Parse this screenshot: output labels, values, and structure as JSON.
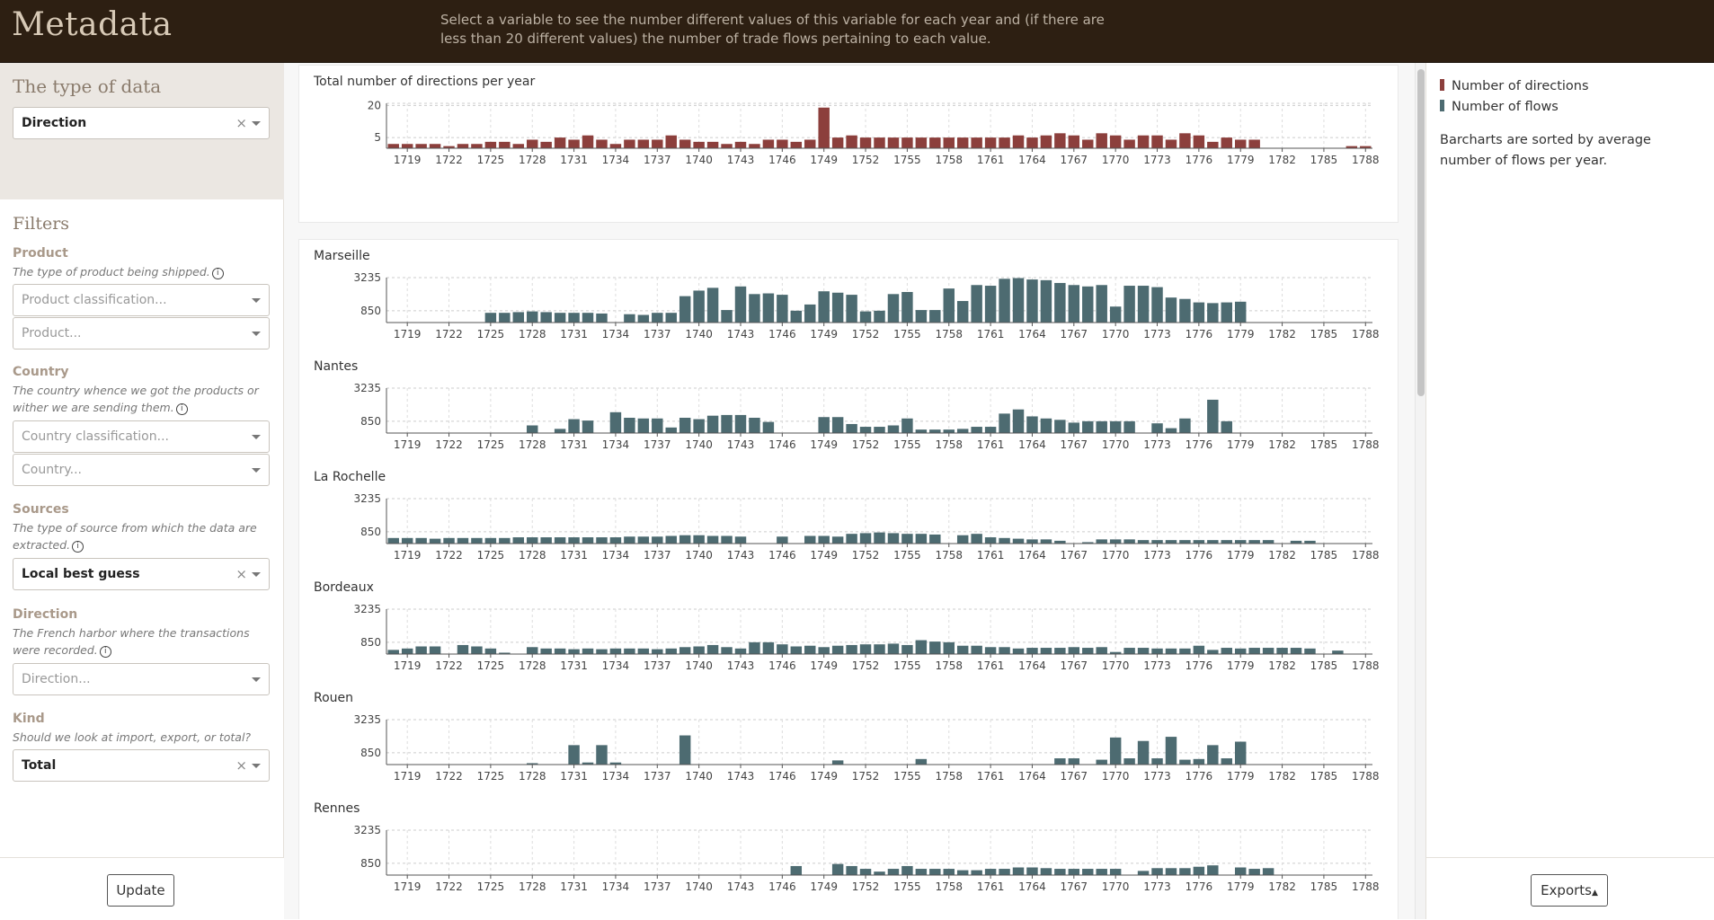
{
  "header": {
    "title": "Metadata",
    "description": "Select a variable to see the number different values of this variable for each year and (if there are less than 20 different values) the number of trade flows pertaining to each value."
  },
  "sidebar": {
    "type_title": "The type of data",
    "type_select": {
      "value": "Direction"
    },
    "filters_title": "Filters",
    "product": {
      "label": "Product",
      "desc": "The type of product being shipped.",
      "classification_placeholder": "Product classification...",
      "placeholder": "Product..."
    },
    "country": {
      "label": "Country",
      "desc": "The country whence we got the products or wither we are sending them.",
      "classification_placeholder": "Country classification...",
      "placeholder": "Country..."
    },
    "sources": {
      "label": "Sources",
      "desc": "The type of source from which the data are extracted.",
      "value": "Local best guess"
    },
    "direction": {
      "label": "Direction",
      "desc": "The French harbor where the transactions were recorded.",
      "placeholder": "Direction..."
    },
    "kind": {
      "label": "Kind",
      "desc": "Should we look at import, export, or total?",
      "value": "Total"
    },
    "update_label": "Update"
  },
  "legend": {
    "items": [
      {
        "label": "Number of directions",
        "color": "#8c3f3c"
      },
      {
        "label": "Number of flows",
        "color": "#4d6b71"
      }
    ],
    "note": "Barcharts are sorted by average number of flows per year."
  },
  "exports_label": "Exports",
  "chart_data": [
    {
      "type": "bar",
      "title": "Total number of directions per year",
      "color": "#8c3f3c",
      "x_start": 1718,
      "x_end": 1788,
      "x_ticks": [
        1719,
        1722,
        1725,
        1728,
        1731,
        1734,
        1737,
        1740,
        1743,
        1746,
        1749,
        1752,
        1755,
        1758,
        1761,
        1764,
        1767,
        1770,
        1773,
        1776,
        1779,
        1782,
        1785,
        1788
      ],
      "y_ticks": [
        5,
        20
      ],
      "ylim": [
        0,
        21
      ],
      "values": [
        2,
        2,
        2,
        2,
        1,
        2,
        2,
        3,
        3,
        2,
        4,
        3,
        5,
        4,
        6,
        4,
        2,
        4,
        4,
        4,
        6,
        4,
        3,
        3,
        2,
        3,
        2,
        4,
        4,
        3,
        4,
        19,
        5,
        6,
        5,
        5,
        5,
        5,
        5,
        5,
        5,
        5,
        5,
        5,
        5,
        6,
        5,
        6,
        7,
        6,
        4,
        7,
        6,
        4,
        6,
        6,
        4,
        7,
        6,
        3,
        5,
        4,
        4,
        null,
        null,
        null,
        null,
        null,
        null,
        1,
        1
      ]
    },
    {
      "type": "bar",
      "title": "Marseille",
      "color": "#4d6b71",
      "x_start": 1718,
      "x_end": 1788,
      "y_ticks": [
        850,
        3235
      ],
      "ylim": [
        0,
        3235
      ],
      "values": [
        null,
        null,
        null,
        null,
        null,
        null,
        null,
        700,
        700,
        750,
        800,
        750,
        700,
        700,
        700,
        650,
        null,
        600,
        550,
        700,
        700,
        1900,
        2300,
        2500,
        900,
        2600,
        2050,
        2100,
        2000,
        850,
        1300,
        2250,
        2150,
        2000,
        800,
        850,
        2050,
        2200,
        900,
        900,
        2450,
        1550,
        2700,
        2650,
        3150,
        3200,
        3100,
        3050,
        2850,
        2700,
        2600,
        2700,
        1150,
        2650,
        2650,
        2550,
        1800,
        1700,
        1450,
        1400,
        1450,
        1500,
        null,
        null,
        null,
        null,
        null,
        null,
        null,
        null,
        null
      ]
    },
    {
      "type": "bar",
      "title": "Nantes",
      "color": "#4d6b71",
      "x_start": 1718,
      "x_end": 1788,
      "y_ticks": [
        850,
        3235
      ],
      "ylim": [
        0,
        3235
      ],
      "values": [
        null,
        null,
        null,
        null,
        null,
        null,
        null,
        null,
        null,
        null,
        550,
        null,
        300,
        1000,
        900,
        null,
        1500,
        1100,
        1050,
        1050,
        400,
        1100,
        1000,
        1250,
        1300,
        1300,
        1100,
        800,
        null,
        null,
        null,
        1150,
        1150,
        650,
        450,
        450,
        550,
        1050,
        250,
        250,
        250,
        300,
        450,
        450,
        1400,
        1700,
        1200,
        1050,
        950,
        750,
        850,
        850,
        850,
        850,
        null,
        700,
        350,
        1050,
        null,
        2400,
        850,
        null,
        null,
        null,
        null,
        null,
        null,
        null,
        null,
        null,
        null
      ]
    },
    {
      "type": "bar",
      "title": "La Rochelle",
      "color": "#4d6b71",
      "x_start": 1718,
      "x_end": 1788,
      "y_ticks": [
        850,
        3235
      ],
      "ylim": [
        0,
        3235
      ],
      "values": [
        400,
        400,
        400,
        350,
        400,
        400,
        400,
        400,
        400,
        450,
        450,
        450,
        450,
        450,
        450,
        450,
        450,
        500,
        500,
        500,
        550,
        600,
        600,
        550,
        550,
        500,
        null,
        null,
        500,
        null,
        550,
        550,
        500,
        700,
        750,
        800,
        750,
        700,
        700,
        650,
        null,
        600,
        700,
        450,
        400,
        350,
        300,
        300,
        200,
        null,
        100,
        300,
        300,
        300,
        250,
        250,
        250,
        250,
        250,
        250,
        250,
        250,
        250,
        250,
        null,
        200,
        200,
        null,
        null,
        null,
        null,
        null
      ]
    },
    {
      "type": "bar",
      "title": "Bordeaux",
      "color": "#4d6b71",
      "x_start": 1718,
      "x_end": 1788,
      "y_ticks": [
        850,
        3235
      ],
      "ylim": [
        0,
        3235
      ],
      "values": [
        300,
        400,
        550,
        550,
        null,
        650,
        550,
        400,
        100,
        null,
        500,
        400,
        400,
        350,
        400,
        350,
        400,
        400,
        400,
        350,
        400,
        500,
        550,
        650,
        500,
        400,
        850,
        850,
        700,
        550,
        600,
        500,
        600,
        650,
        700,
        700,
        750,
        650,
        1000,
        900,
        850,
        600,
        600,
        500,
        500,
        400,
        450,
        450,
        450,
        500,
        450,
        500,
        150,
        450,
        450,
        400,
        400,
        400,
        600,
        300,
        450,
        400,
        450,
        450,
        450,
        450,
        400,
        null,
        250,
        null,
        null,
        null
      ]
    },
    {
      "type": "bar",
      "title": "Rouen",
      "color": "#4d6b71",
      "x_start": 1718,
      "x_end": 1788,
      "y_ticks": [
        850,
        3235
      ],
      "ylim": [
        0,
        3235
      ],
      "values": [
        null,
        null,
        null,
        null,
        null,
        null,
        null,
        null,
        null,
        null,
        100,
        null,
        null,
        1400,
        150,
        1400,
        150,
        null,
        null,
        null,
        null,
        2100,
        null,
        null,
        null,
        null,
        null,
        null,
        null,
        null,
        null,
        null,
        300,
        null,
        null,
        null,
        null,
        null,
        400,
        null,
        null,
        null,
        null,
        null,
        null,
        null,
        null,
        null,
        450,
        450,
        null,
        350,
        1950,
        450,
        1700,
        450,
        2000,
        350,
        400,
        1400,
        450,
        1650,
        null,
        null,
        null,
        null,
        null,
        null,
        null,
        null,
        null
      ]
    },
    {
      "type": "bar",
      "title": "Rennes",
      "color": "#4d6b71",
      "x_start": 1718,
      "x_end": 1788,
      "y_ticks": [
        850,
        3235
      ],
      "ylim": [
        0,
        3235
      ],
      "values": [
        null,
        null,
        null,
        null,
        null,
        null,
        null,
        null,
        null,
        null,
        null,
        null,
        null,
        null,
        null,
        null,
        null,
        null,
        null,
        null,
        null,
        null,
        null,
        null,
        null,
        null,
        null,
        null,
        null,
        650,
        null,
        null,
        800,
        650,
        450,
        250,
        450,
        650,
        450,
        450,
        450,
        350,
        350,
        450,
        450,
        550,
        550,
        500,
        450,
        450,
        450,
        450,
        450,
        null,
        300,
        500,
        500,
        500,
        600,
        700,
        null,
        550,
        450,
        500,
        null,
        null,
        null,
        null,
        null,
        null,
        null
      ]
    }
  ]
}
